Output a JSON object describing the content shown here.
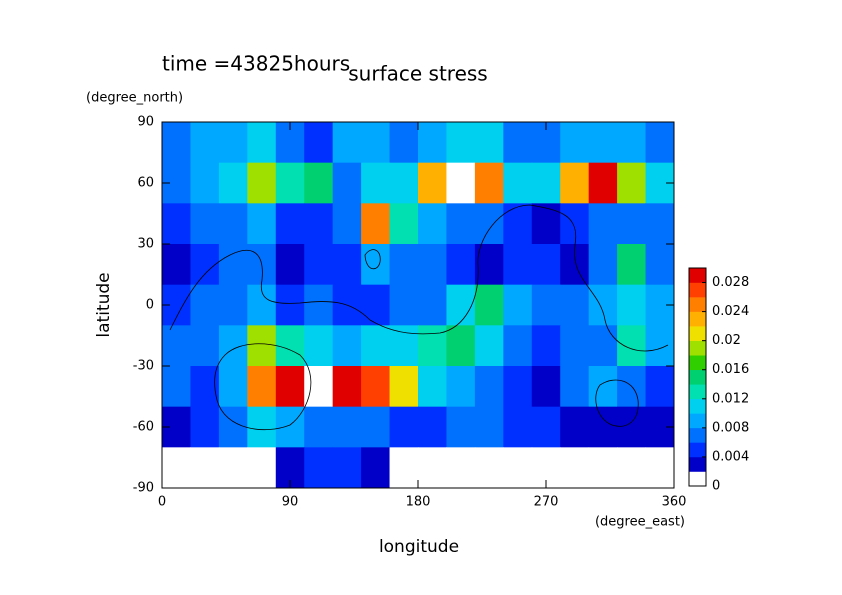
{
  "chart_data": {
    "type": "contour",
    "title": "surface stress",
    "subtitle": "time =43825hours",
    "x_label": "longitude",
    "x_unit": "(degree_east)",
    "y_label": "latitude",
    "y_unit": "(degree_north)",
    "xlim": [
      0,
      360
    ],
    "xticks": [
      0,
      90,
      180,
      270,
      360
    ],
    "ylim": [
      -90,
      90
    ],
    "yticks": [
      -90,
      -60,
      -30,
      0,
      30,
      60,
      90
    ],
    "x": [
      10,
      30,
      50,
      70,
      90,
      110,
      130,
      150,
      170,
      190,
      210,
      230,
      250,
      270,
      290,
      310,
      330,
      350
    ],
    "y": [
      80,
      60,
      40,
      20,
      0,
      -20,
      -40,
      -60,
      -80
    ],
    "z": [
      [
        0.006,
        0.008,
        0.008,
        0.01,
        0.006,
        0.004,
        0.008,
        0.008,
        0.006,
        0.008,
        0.01,
        0.01,
        0.006,
        0.006,
        0.008,
        0.008,
        0.008,
        0.006
      ],
      [
        0.006,
        0.008,
        0.01,
        0.018,
        0.012,
        0.014,
        0.006,
        0.01,
        0.01,
        0.022,
        0.032,
        0.024,
        0.01,
        0.01,
        0.022,
        0.028,
        0.018,
        0.01
      ],
      [
        0.004,
        0.006,
        0.006,
        0.008,
        0.004,
        0.004,
        0.006,
        0.024,
        0.012,
        0.008,
        0.006,
        0.006,
        0.004,
        0.002,
        0.004,
        0.006,
        0.006,
        0.006
      ],
      [
        0.002,
        0.004,
        0.006,
        0.006,
        0.002,
        0.004,
        0.004,
        0.008,
        0.006,
        0.006,
        0.004,
        0.002,
        0.004,
        0.004,
        0.002,
        0.006,
        0.014,
        0.006
      ],
      [
        0.004,
        0.006,
        0.006,
        0.008,
        0.004,
        0.006,
        0.004,
        0.004,
        0.006,
        0.006,
        0.01,
        0.014,
        0.008,
        0.006,
        0.006,
        0.008,
        0.01,
        0.008
      ],
      [
        0.006,
        0.006,
        0.008,
        0.018,
        0.012,
        0.01,
        0.008,
        0.01,
        0.01,
        0.012,
        0.014,
        0.01,
        0.006,
        0.004,
        0.006,
        0.006,
        0.012,
        0.008
      ],
      [
        0.006,
        0.004,
        0.008,
        0.024,
        0.028,
        0.032,
        0.03,
        0.026,
        0.02,
        0.01,
        0.008,
        0.006,
        0.004,
        0.002,
        0.006,
        0.008,
        0.006,
        0.004
      ],
      [
        0.002,
        0.004,
        0.006,
        0.01,
        0.008,
        0.006,
        0.006,
        0.006,
        0.004,
        0.004,
        0.006,
        0.006,
        0.004,
        0.004,
        0.002,
        0.002,
        0.002,
        0.002
      ],
      [
        0,
        0,
        0,
        0,
        0.002,
        0.004,
        0.004,
        0.002,
        0,
        0,
        0,
        0,
        0,
        0,
        0,
        0,
        0,
        0
      ]
    ],
    "clim": [
      0,
      0.03
    ],
    "cticks": [
      0,
      0.004,
      0.008,
      0.012,
      0.016,
      0.02,
      0.024,
      0.028
    ],
    "colors": [
      "#ffffff",
      "#0000c8",
      "#0030ff",
      "#0070ff",
      "#00a8ff",
      "#00d0f0",
      "#00e0b0",
      "#00d070",
      "#30d000",
      "#a0e000",
      "#f0e000",
      "#ffb000",
      "#ff8000",
      "#ff4000",
      "#e00000"
    ],
    "over_color": "#ffffff"
  }
}
